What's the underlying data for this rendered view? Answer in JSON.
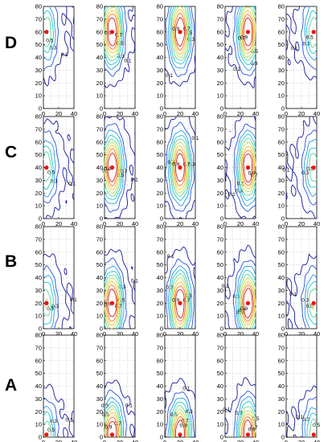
{
  "chart_data": {
    "type": "contour",
    "layout": {
      "rows": [
        "D",
        "C",
        "B",
        "A"
      ],
      "columns": 5
    },
    "axes": {
      "x": {
        "lim": [
          0,
          40
        ],
        "ticks": [
          0,
          20,
          40
        ]
      },
      "y": {
        "lim": [
          0,
          80
        ],
        "ticks": [
          0,
          10,
          20,
          30,
          40,
          50,
          60,
          70,
          80
        ]
      }
    },
    "grid": "dotted",
    "contour_levels": [
      0.1,
      0.2,
      0.3,
      0.4,
      0.5,
      0.6,
      0.7,
      0.8,
      0.9
    ],
    "labeled_levels": [
      "0.1",
      "0.3",
      "0.5",
      "0.7",
      "0.9"
    ],
    "colors": {
      "levels": [
        "#1a1a9a",
        "#2a52d8",
        "#2a9ce6",
        "#21c7cf",
        "#5fd89a",
        "#bde05a",
        "#f2c425",
        "#ee7a22",
        "#cc2222"
      ],
      "source_marker": "#ee1111"
    },
    "source_rows": {
      "D": {
        "y": 60,
        "x": [
          4,
          10,
          20,
          30,
          36
        ]
      },
      "C": {
        "y": 40,
        "x": [
          4,
          10,
          20,
          30,
          36
        ]
      },
      "B": {
        "y": 20,
        "x": [
          4,
          10,
          20,
          30,
          36
        ]
      },
      "A": {
        "y": 2,
        "x": [
          4,
          10,
          20,
          30,
          36
        ]
      }
    },
    "source_strength": [
      0.5,
      1.0,
      1.0,
      1.0,
      0.5
    ]
  }
}
